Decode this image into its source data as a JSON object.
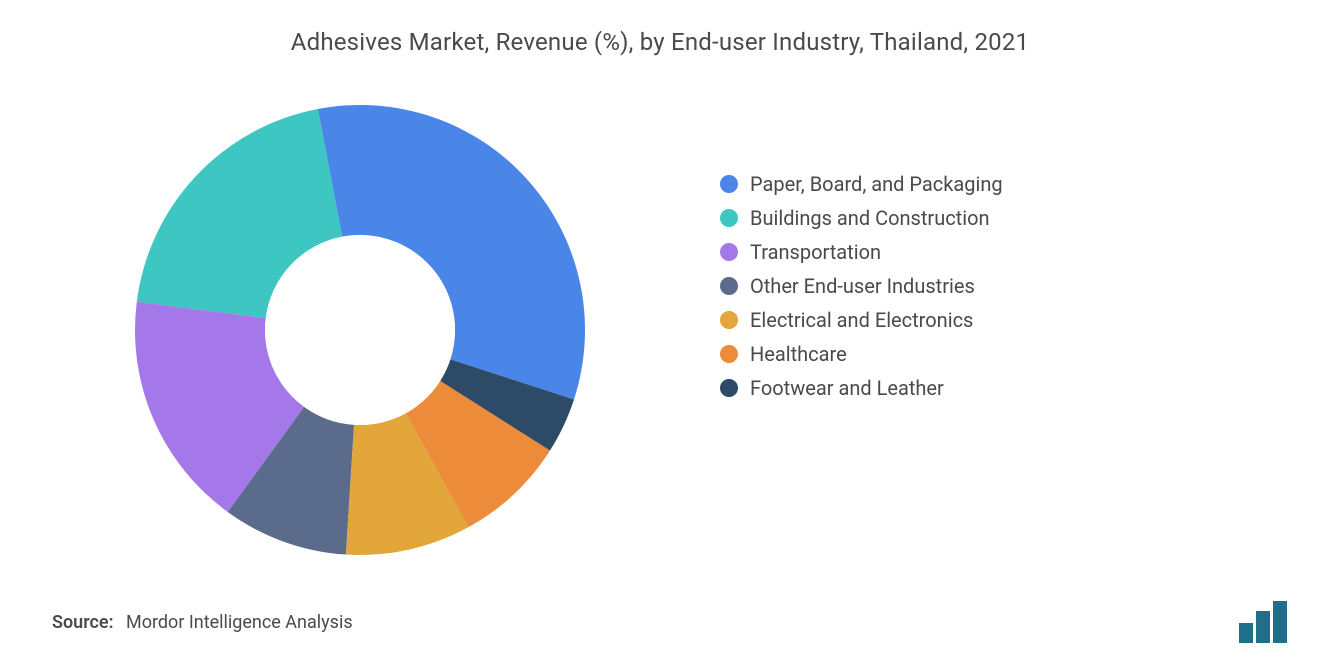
{
  "chart": {
    "type": "donut",
    "title": "Adhesives Market, Revenue (%), by End-user Industry, Thailand, 2021",
    "title_fontsize": 24,
    "title_color": "#4a4a4a",
    "background_color": "#ffffff",
    "start_angle_deg": 0,
    "direction": "clockwise",
    "outer_radius": 225,
    "inner_radius": 95,
    "inner_fill": "#ffffff",
    "slices": [
      {
        "label": "Paper, Board, and Packaging",
        "value": 33,
        "color": "#4a86e8"
      },
      {
        "label": "Buildings and Construction",
        "value": 20,
        "color": "#3ec7c2"
      },
      {
        "label": "Transportation",
        "value": 17,
        "color": "#a578ea"
      },
      {
        "label": "Other End-user Industries",
        "value": 9,
        "color": "#5a6b8c"
      },
      {
        "label": "Electrical and Electronics",
        "value": 9,
        "color": "#e2a63a"
      },
      {
        "label": "Healthcare",
        "value": 8,
        "color": "#ec8b3a"
      },
      {
        "label": "Footwear and Leather",
        "value": 4,
        "color": "#2d4b66"
      }
    ],
    "legend": {
      "marker_shape": "circle",
      "marker_size": 18,
      "fontsize": 20,
      "text_color": "#4a4a4a"
    }
  },
  "source": {
    "label": "Source:",
    "text": "Mordor Intelligence Analysis",
    "fontsize": 18,
    "color": "#4a4a4a"
  },
  "logo": {
    "name": "mordor-intelligence-logo",
    "bar_color": "#1f6f8b",
    "bar_count": 3
  }
}
